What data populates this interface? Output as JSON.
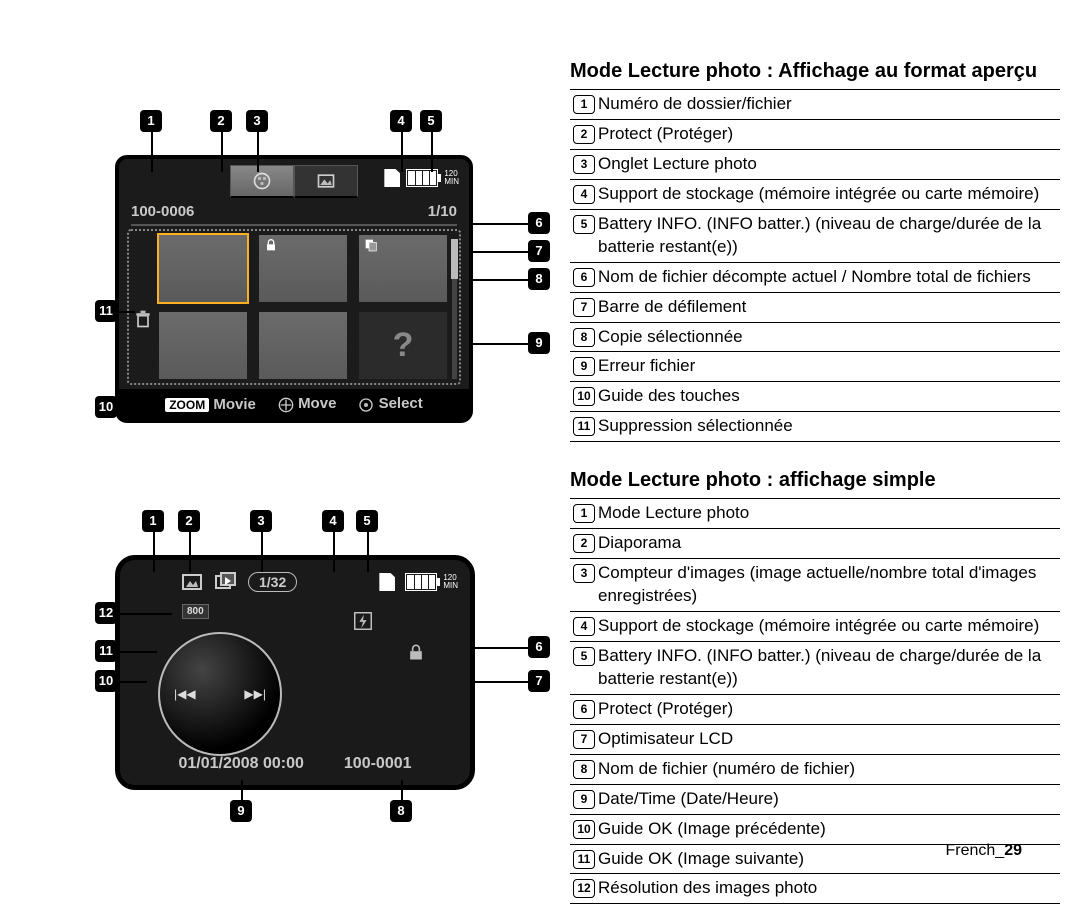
{
  "page": {
    "lang": "French",
    "num": "29"
  },
  "section1": {
    "title": "Mode Lecture photo : Affichage au format aperçu",
    "items": [
      "Numéro de dossier/fichier",
      "Protect (Protéger)",
      "Onglet Lecture photo",
      "Support de stockage (mémoire intégrée ou carte mémoire)",
      "Battery INFO. (INFO batter.) (niveau de charge/durée de la batterie restant(e))",
      "Nom de fichier décompte actuel / Nombre total de fichiers",
      "Barre de défilement",
      "Copie sélectionnée",
      "Erreur fichier",
      "Guide des touches",
      "Suppression sélectionnée"
    ]
  },
  "section2": {
    "title": "Mode Lecture photo : affichage simple",
    "items": [
      "Mode Lecture photo",
      "Diaporama",
      "Compteur d'images (image actuelle/nombre total d'images enregistrées)",
      "Support de stockage (mémoire intégrée ou carte mémoire)",
      "Battery INFO. (INFO batter.) (niveau de charge/durée de la batterie restant(e))",
      "Protect (Protéger)",
      "Optimisateur LCD",
      "Nom de fichier (numéro de fichier)",
      "Date/Time (Date/Heure)",
      "Guide OK (Image précédente)",
      "Guide OK (Image suivante)",
      "Résolution des images photo"
    ]
  },
  "fig1": {
    "folder": "100-0006",
    "counter": "1/10",
    "battery_mins": "120",
    "battery_unit": "MIN",
    "guide": {
      "zoom": "ZOOM",
      "movie": "Movie",
      "move": "Move",
      "select": "Select"
    },
    "error_glyph": "?",
    "colors": {
      "screen_bg": "#1b1b1b",
      "thumb": "#666666",
      "highlight": "#ffb020",
      "text": "#c9c9c9"
    }
  },
  "fig2": {
    "counter": "1/32",
    "resolution": "800",
    "battery_mins": "120",
    "battery_unit": "MIN",
    "datetime": "01/01/2008  00:00",
    "filenum": "100-0001",
    "nav_prev": "|◀◀",
    "nav_next": "▶▶|",
    "colors": {
      "screen_bg": "#1a1a1a",
      "text": "#c9c9c9"
    }
  },
  "callouts_top": {
    "labels": [
      "1",
      "2",
      "3",
      "4",
      "5",
      "6",
      "7",
      "8",
      "9",
      "10",
      "11"
    ]
  },
  "callouts_bottom": {
    "labels": [
      "1",
      "2",
      "3",
      "4",
      "5",
      "6",
      "7",
      "8",
      "9",
      "10",
      "11",
      "12"
    ]
  }
}
